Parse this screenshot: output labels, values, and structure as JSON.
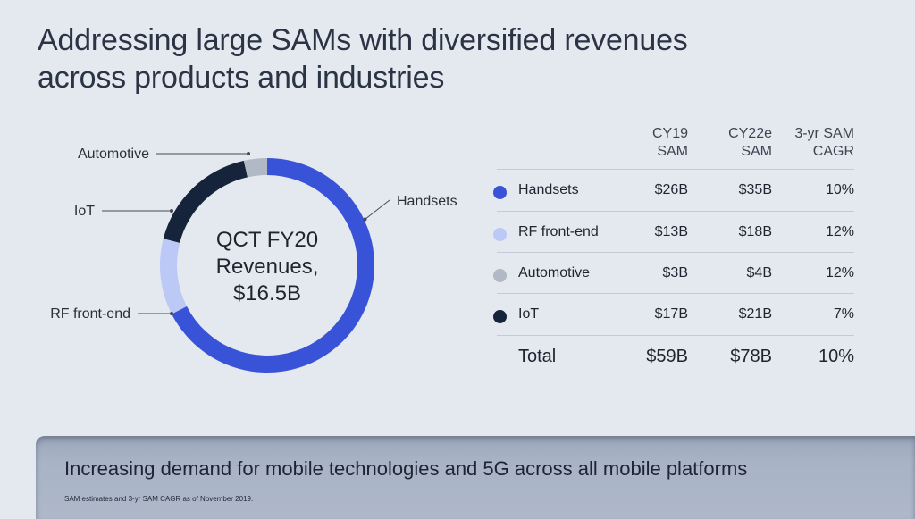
{
  "title": {
    "line1": "Addressing large SAMs with diversified revenues",
    "line2": "across products and industries"
  },
  "chart_data": {
    "type": "pie",
    "donut": true,
    "center_label": [
      "QCT FY20",
      "Revenues,",
      "$16.5B"
    ],
    "slices": [
      {
        "label": "Handsets",
        "fraction": 0.675,
        "color": "#3853d8"
      },
      {
        "label": "RF front-end",
        "fraction": 0.115,
        "color": "#bcc8f5"
      },
      {
        "label": "IoT",
        "fraction": 0.175,
        "color": "#15243a"
      },
      {
        "label": "Automotive",
        "fraction": 0.035,
        "color": "#b2b9c6"
      }
    ]
  },
  "table": {
    "headers": [
      [
        "CY19",
        "SAM"
      ],
      [
        "CY22e",
        "SAM"
      ],
      [
        "3-yr SAM",
        "CAGR"
      ]
    ],
    "rows": [
      {
        "label": "Handsets",
        "color": "#3853d8",
        "cy19": "$26B",
        "cy22": "$35B",
        "cagr": "10%"
      },
      {
        "label": "RF front-end",
        "color": "#bcc8f5",
        "cy19": "$13B",
        "cy22": "$18B",
        "cagr": "12%"
      },
      {
        "label": "Automotive",
        "color": "#b2b9c6",
        "cy19": "$3B",
        "cy22": "$4B",
        "cagr": "12%"
      },
      {
        "label": "IoT",
        "color": "#15243a",
        "cy19": "$17B",
        "cy22": "$21B",
        "cagr": "7%"
      }
    ],
    "total": {
      "label": "Total",
      "cy19": "$59B",
      "cy22": "$78B",
      "cagr": "10%"
    }
  },
  "banner": {
    "text": "Increasing demand for mobile technologies and 5G across all mobile platforms",
    "footnote": "SAM estimates and 3-yr SAM CAGR as of November 2019."
  }
}
